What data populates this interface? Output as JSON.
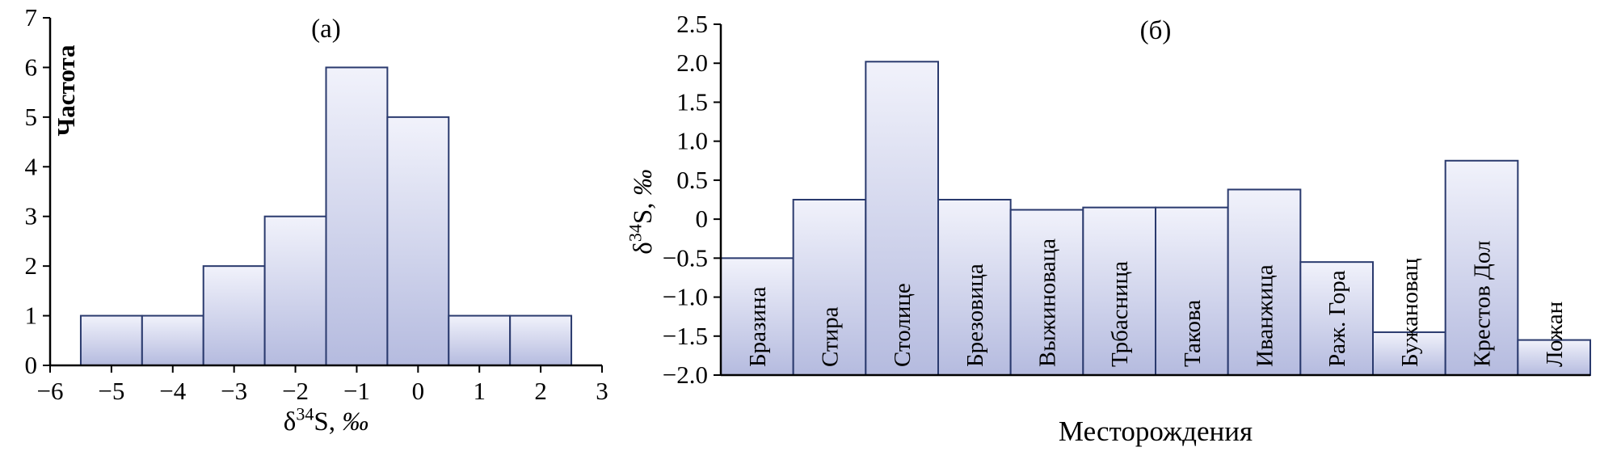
{
  "page": {
    "background": "#ffffff"
  },
  "style": {
    "bar_fill_top": "#f1f2fb",
    "bar_fill_bottom": "#b5bbdf",
    "bar_border": "#2a3a6e",
    "axis_color": "#000000",
    "text_color": "#000000"
  },
  "chart_data": [
    {
      "id": "a",
      "type": "bar",
      "subtype": "histogram",
      "title": "(а)",
      "ylabel": "Частота",
      "xlabel": {
        "base": "δ",
        "sup": "34",
        "tail": "S, ",
        "unit": "‰"
      },
      "bin_centers": [
        -5,
        -4,
        -3,
        -2,
        -1,
        0,
        1,
        2
      ],
      "bin_width": 1,
      "values": [
        1,
        1,
        2,
        3,
        6,
        5,
        1,
        1
      ],
      "xlim": [
        -6,
        3
      ],
      "ylim": [
        0,
        7
      ],
      "xticks": [
        -6,
        -5,
        -4,
        -3,
        -2,
        -1,
        0,
        1,
        2,
        3
      ],
      "xtick_labels": [
        "−6",
        "−5",
        "−4",
        "−3",
        "−2",
        "−1",
        "0",
        "1",
        "2",
        "3"
      ],
      "yticks": [
        0,
        1,
        2,
        3,
        4,
        5,
        6,
        7
      ],
      "ytick_labels": [
        "0",
        "1",
        "2",
        "3",
        "4",
        "5",
        "6",
        "7"
      ],
      "legend": null,
      "grid": false
    },
    {
      "id": "b",
      "type": "bar",
      "title": "(б)",
      "ylabel": {
        "base": "δ",
        "sup": "34",
        "tail": "S, ",
        "unit": "‰"
      },
      "xlabel": "Месторождения",
      "categories": [
        "Бразина",
        "Стира",
        "Столице",
        "Брезовица",
        "Выжиноваца",
        "Трбасница",
        "Такова",
        "Иванжица",
        "Раж. Гора",
        "Бужановац",
        "Крестов Дол",
        "Ложан"
      ],
      "values": [
        -0.5,
        0.25,
        2.02,
        0.25,
        0.12,
        0.15,
        0.15,
        0.38,
        -0.55,
        -1.45,
        0.75,
        -1.55
      ],
      "baseline": -2.0,
      "ylim": [
        -2.0,
        2.5
      ],
      "yticks": [
        2.5,
        2.0,
        1.5,
        1.0,
        0.5,
        0,
        -0.5,
        -1.0,
        -1.5,
        -2.0
      ],
      "ytick_labels": [
        "2.5",
        "2.0",
        "1.5",
        "1.0",
        "0.5",
        "0",
        "−0.5",
        "−1.0",
        "−1.5",
        "−2.0"
      ],
      "legend": null,
      "grid": false
    }
  ]
}
